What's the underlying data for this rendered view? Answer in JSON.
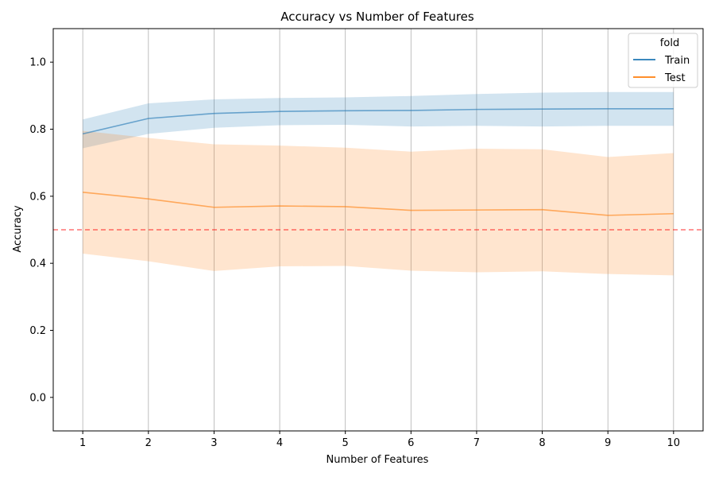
{
  "chart_data": {
    "type": "line",
    "title": "Accuracy vs Number of Features",
    "xlabel": "Number of Features",
    "ylabel": "Accuracy",
    "x": [
      1,
      2,
      3,
      4,
      5,
      6,
      7,
      8,
      9,
      10
    ],
    "xticks": [
      "1",
      "2",
      "3",
      "4",
      "5",
      "6",
      "7",
      "8",
      "9",
      "10"
    ],
    "yticks": [
      "0.0",
      "0.2",
      "0.4",
      "0.6",
      "0.8",
      "1.0"
    ],
    "xlim": [
      0.55,
      10.45
    ],
    "ylim": [
      -0.1,
      1.1
    ],
    "grid": "vertical",
    "legend": {
      "title": "fold",
      "placement": "top-right"
    },
    "series": [
      {
        "name": "Train",
        "color": "#1f77b4",
        "values": [
          0.786,
          0.832,
          0.847,
          0.853,
          0.855,
          0.856,
          0.859,
          0.86,
          0.861,
          0.861
        ],
        "lower": [
          0.743,
          0.786,
          0.804,
          0.812,
          0.813,
          0.808,
          0.81,
          0.808,
          0.81,
          0.81
        ],
        "upper": [
          0.829,
          0.877,
          0.889,
          0.893,
          0.895,
          0.899,
          0.905,
          0.909,
          0.911,
          0.911
        ]
      },
      {
        "name": "Test",
        "color": "#ff7f0e",
        "values": [
          0.612,
          0.592,
          0.567,
          0.571,
          0.569,
          0.558,
          0.559,
          0.56,
          0.543,
          0.548
        ],
        "lower": [
          0.429,
          0.406,
          0.377,
          0.391,
          0.392,
          0.378,
          0.373,
          0.376,
          0.368,
          0.364
        ],
        "upper": [
          0.795,
          0.774,
          0.755,
          0.751,
          0.745,
          0.733,
          0.742,
          0.74,
          0.717,
          0.729
        ]
      }
    ],
    "reference_line": {
      "y": 0.5,
      "color": "#ff0000",
      "style": "dashed"
    }
  }
}
